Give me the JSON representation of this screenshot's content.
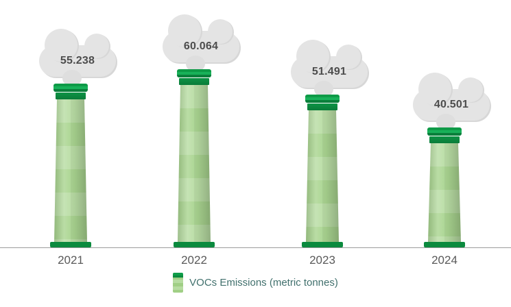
{
  "chart_data": {
    "type": "bar",
    "title": "",
    "xlabel": "",
    "ylabel": "",
    "categories": [
      "2021",
      "2022",
      "2023",
      "2024"
    ],
    "values": [
      55.238,
      60.064,
      51.491,
      40.501
    ],
    "value_labels": [
      "55.238",
      "60.064",
      "51.491",
      "40.501"
    ],
    "series_name": "VOCs Emissions (metric tonnes)",
    "ylim": [
      0,
      65
    ],
    "grid": false,
    "legend_position": "bottom",
    "bar_style": "smokestack-pictogram",
    "colors": {
      "column_light": "#b7dca2",
      "column_mid": "#a8d48e",
      "cap_dark": "#0b8a3e",
      "cap_green": "#10a04c",
      "smoke": "#e4e4e4",
      "label_text": "#4d4d4d",
      "year_text": "#595959",
      "legend_text": "#41706d",
      "axis_line": "#9b9b9b"
    }
  },
  "legend": {
    "label": "VOCs Emissions (metric tonnes)"
  }
}
